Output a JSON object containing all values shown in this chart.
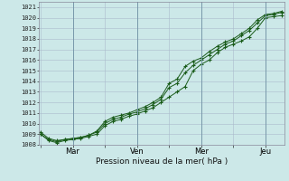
{
  "xlabel": "Pression niveau de la mer( hPa )",
  "bg_color": "#cce8e8",
  "grid_color": "#aabbcc",
  "line_color": "#1a5c1a",
  "marker_color": "#1a5c1a",
  "ylim": [
    1008,
    1021.5
  ],
  "yticks": [
    1008,
    1009,
    1010,
    1011,
    1012,
    1013,
    1014,
    1015,
    1016,
    1017,
    1018,
    1019,
    1020,
    1021
  ],
  "xtick_labels": [
    "",
    "Mar",
    "",
    "Ven",
    "",
    "Mer",
    "",
    "Jeu"
  ],
  "xtick_positions": [
    0,
    1,
    2,
    3,
    4,
    5,
    6,
    7
  ],
  "vlines": [
    1,
    3,
    5,
    7
  ],
  "xlim": [
    -0.05,
    7.6
  ],
  "x_data": [
    0.0,
    0.25,
    0.5,
    0.75,
    1.0,
    1.25,
    1.5,
    1.75,
    2.0,
    2.25,
    2.5,
    2.75,
    3.0,
    3.25,
    3.5,
    3.75,
    4.0,
    4.25,
    4.5,
    4.75,
    5.0,
    5.25,
    5.5,
    5.75,
    6.0,
    6.25,
    6.5,
    6.75,
    7.0,
    7.25,
    7.5
  ],
  "s1": [
    1009.0,
    1008.5,
    1008.3,
    1008.5,
    1008.6,
    1008.7,
    1008.9,
    1009.2,
    1010.0,
    1010.4,
    1010.6,
    1010.9,
    1011.1,
    1011.4,
    1011.8,
    1012.3,
    1013.4,
    1013.8,
    1014.8,
    1015.5,
    1016.0,
    1016.5,
    1017.0,
    1017.5,
    1017.8,
    1018.3,
    1018.8,
    1019.5,
    1020.2,
    1020.3,
    1020.5
  ],
  "s2": [
    1009.0,
    1008.4,
    1008.2,
    1008.4,
    1008.5,
    1008.6,
    1008.8,
    1009.0,
    1009.8,
    1010.2,
    1010.4,
    1010.7,
    1010.9,
    1011.2,
    1011.5,
    1012.0,
    1012.5,
    1013.0,
    1013.5,
    1015.0,
    1015.6,
    1016.0,
    1016.7,
    1017.2,
    1017.5,
    1017.8,
    1018.2,
    1019.0,
    1020.0,
    1020.1,
    1020.2
  ],
  "s3": [
    1009.2,
    1008.6,
    1008.4,
    1008.5,
    1008.6,
    1008.7,
    1008.9,
    1009.3,
    1010.2,
    1010.6,
    1010.8,
    1011.0,
    1011.3,
    1011.6,
    1012.0,
    1012.5,
    1013.8,
    1014.2,
    1015.4,
    1015.9,
    1016.2,
    1016.8,
    1017.3,
    1017.7,
    1018.0,
    1018.5,
    1019.0,
    1019.8,
    1020.3,
    1020.4,
    1020.6
  ]
}
